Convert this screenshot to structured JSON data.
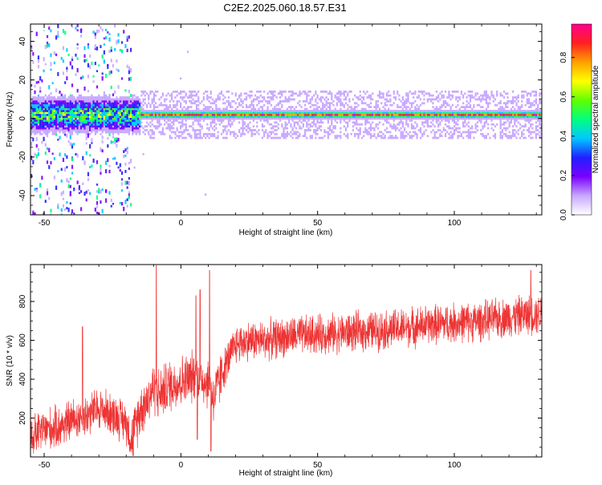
{
  "title": "C2E2.2025.060.18.57.E31",
  "colors": {
    "trace": "#ee3333",
    "frame": "#000000"
  },
  "chart_data": [
    {
      "type": "heatmap",
      "name": "spectrogram",
      "xlabel": "Height of straight line (km)",
      "ylabel": "Frequency (Hz)",
      "xlim": [
        -55,
        132
      ],
      "ylim": [
        -50,
        49
      ],
      "xticks": [
        -50,
        0,
        50,
        100
      ],
      "yticks": [
        -40,
        -20,
        0,
        20,
        40
      ],
      "xticklabels": [
        "-50",
        "0",
        "50",
        "100"
      ],
      "yticklabels": [
        "-40",
        "-20",
        "0",
        "20",
        "40"
      ],
      "signal": {
        "frequency_hz": 2,
        "strong_from_km": -15,
        "noise_until_km": -18
      },
      "colorbar": {
        "label": "Normalized spectral amplitude",
        "range": [
          0,
          0.97
        ],
        "ticks": [
          0.0,
          0.2,
          0.4,
          0.6,
          0.8
        ],
        "ticklabels": [
          "0.0",
          "0.2",
          "0.4",
          "0.6",
          "0.8"
        ],
        "colormap": [
          "#ffffff",
          "#c8a8ff",
          "#7a00ff",
          "#2020ff",
          "#00c8ff",
          "#00ff80",
          "#60ff00",
          "#ffff00",
          "#ffa000",
          "#ff2020",
          "#ff0090"
        ]
      }
    },
    {
      "type": "line",
      "name": "snr",
      "xlabel": "Height of straight line (km)",
      "ylabel": "SNR (10 * v/v)",
      "xlim": [
        -55,
        132
      ],
      "ylim": [
        0,
        990
      ],
      "xticks": [
        -50,
        0,
        50,
        100
      ],
      "yticks": [
        200,
        400,
        600,
        800
      ],
      "xticklabels": [
        "-50",
        "0",
        "50",
        "100"
      ],
      "yticklabels": [
        "200",
        "400",
        "600",
        "800"
      ],
      "series": [
        {
          "x": [
            -55,
            -50,
            -45,
            -40,
            -35,
            -30,
            -25,
            -20,
            -18,
            -15,
            -12,
            -10,
            -8,
            -5,
            -2,
            0,
            3,
            5,
            8,
            10,
            12,
            15,
            18,
            20,
            25,
            30,
            40,
            50,
            60,
            70,
            80,
            90,
            100,
            110,
            120,
            132
          ],
          "y": [
            100,
            140,
            150,
            190,
            210,
            250,
            220,
            180,
            80,
            240,
            300,
            360,
            320,
            360,
            380,
            390,
            400,
            420,
            400,
            380,
            300,
            430,
            520,
            580,
            600,
            600,
            620,
            630,
            640,
            650,
            660,
            680,
            690,
            700,
            720,
            740
          ],
          "spikes": [
            {
              "x": -9,
              "y": 985
            },
            {
              "x": 5.5,
              "y": 830
            },
            {
              "x": 7,
              "y": 860
            },
            {
              "x": 10.5,
              "y": 960
            },
            {
              "x": 11,
              "y": 30
            },
            {
              "x": 6,
              "y": 90
            },
            {
              "x": -36,
              "y": 670
            },
            {
              "x": 128,
              "y": 960
            }
          ]
        }
      ]
    }
  ]
}
